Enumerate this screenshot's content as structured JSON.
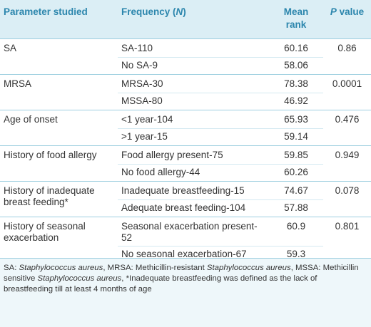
{
  "table": {
    "header": [
      [
        "Parameter studied"
      ],
      [
        "Frequency (",
        "N",
        ")"
      ],
      [
        "Mean rank"
      ],
      [
        "P",
        " value"
      ]
    ],
    "groups": [
      {
        "parameter": "SA",
        "p_value": "0.86",
        "rows": [
          [
            "SA-110",
            "60.16"
          ],
          [
            "No SA-9",
            "58.06"
          ]
        ]
      },
      {
        "parameter": "MRSA",
        "p_value": "0.0001",
        "rows": [
          [
            "MRSA-30",
            "78.38"
          ],
          [
            "MSSA-80",
            "46.92"
          ]
        ]
      },
      {
        "parameter": "Age of onset",
        "p_value": "0.476",
        "rows": [
          [
            "<1 year-104",
            "65.93"
          ],
          [
            ">1 year-15",
            "59.14"
          ]
        ]
      },
      {
        "parameter": "History of food allergy",
        "p_value": "0.949",
        "rows": [
          [
            "Food allergy present-75",
            "59.85"
          ],
          [
            "No food allergy-44",
            "60.26"
          ]
        ]
      },
      {
        "parameter": "History of inadequate breast feeding*",
        "p_value": "0.078",
        "rows": [
          [
            "Inadequate breastfeeding-15",
            "74.67"
          ],
          [
            "Adequate breast feeding-104",
            "57.88"
          ]
        ]
      },
      {
        "parameter": "History of seasonal exacerbation",
        "p_value": "0.801",
        "rows": [
          [
            "Seasonal exacerbation present-52",
            "60.9"
          ],
          [
            "No seasonal exacerbation-67",
            "59.3"
          ]
        ]
      }
    ],
    "footnote": [
      {
        "text": "SA: ",
        "italic": false
      },
      {
        "text": "Staphylococcus aureus",
        "italic": true
      },
      {
        "text": ", MRSA: Methicillin-resistant ",
        "italic": false
      },
      {
        "text": "Staphylococcus aureus",
        "italic": true
      },
      {
        "text": ", MSSA: Methicillin sensitive ",
        "italic": false
      },
      {
        "text": "Staphylococcus aureus",
        "italic": true
      },
      {
        "text": ", *Inadequate breastfeeding was defined as the lack of breastfeeding till at least 4 months of age",
        "italic": false
      }
    ]
  }
}
